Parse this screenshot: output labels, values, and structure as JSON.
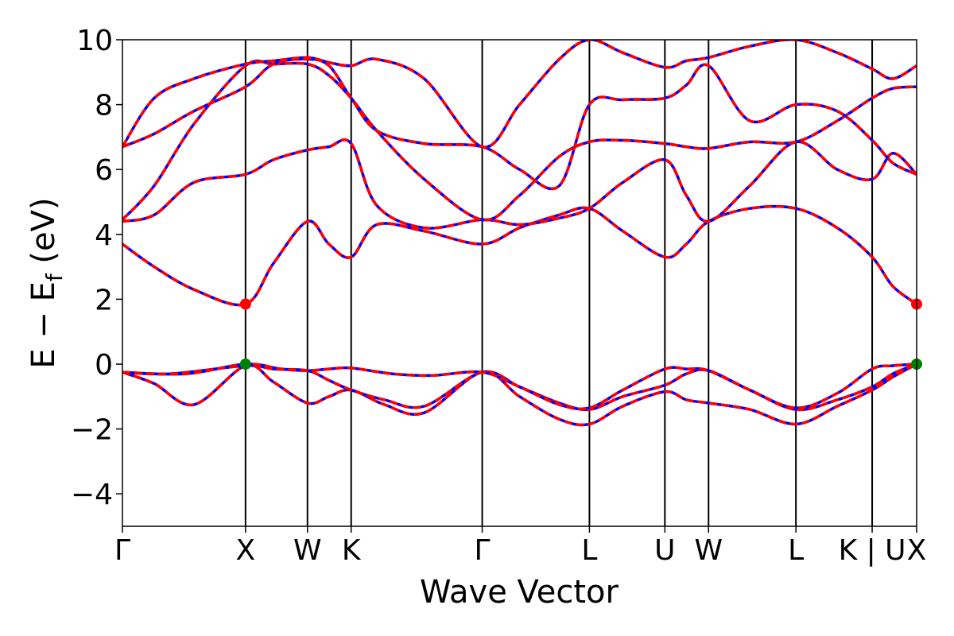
{
  "chart_data": {
    "type": "line",
    "xlabel": "Wave Vector",
    "ylabel": "E − E",
    "ylabel_sub": "f",
    "ylabel_unit": " (eV)",
    "ylim": [
      -5,
      10
    ],
    "xlim": [
      0,
      1
    ],
    "yticks": [
      -4,
      -2,
      0,
      2,
      4,
      6,
      8,
      10
    ],
    "ytick_labels": [
      "−4",
      "−2",
      "0",
      "2",
      "4",
      "6",
      "8",
      "10"
    ],
    "kpoints": [
      {
        "label": "Γ",
        "x": 0.0
      },
      {
        "label": "X",
        "x": 0.155
      },
      {
        "label": "W",
        "x": 0.233
      },
      {
        "label": "K",
        "x": 0.288
      },
      {
        "label": "Γ",
        "x": 0.453
      },
      {
        "label": "L",
        "x": 0.588
      },
      {
        "label": "U",
        "x": 0.683
      },
      {
        "label": "W",
        "x": 0.738
      },
      {
        "label": "L",
        "x": 0.848
      },
      {
        "label": "K | U",
        "x": 0.944
      },
      {
        "label": "X",
        "x": 1.0
      }
    ],
    "colors": {
      "bands": "#0000ff",
      "bands_overlay": "#ff0000",
      "vbm_marker": "#008000",
      "cbm_marker": "#ff0000",
      "kline": "#000000"
    },
    "series": [
      {
        "x": [
          0,
          0.04,
          0.09,
          0.155,
          0.19,
          0.233,
          0.26,
          0.288,
          0.33,
          0.38,
          0.453,
          0.5,
          0.55,
          0.588,
          0.63,
          0.683,
          0.71,
          0.738,
          0.79,
          0.848,
          0.9,
          0.944,
          0.97,
          1.0
        ],
        "y": [
          -0.25,
          -0.6,
          -1.25,
          -0.05,
          -0.55,
          -1.2,
          -1.0,
          -0.8,
          -1.25,
          -1.5,
          -0.25,
          -1.0,
          -1.7,
          -1.85,
          -1.3,
          -0.85,
          -1.1,
          -1.2,
          -1.4,
          -1.85,
          -1.3,
          -0.8,
          -0.4,
          0.0
        ]
      },
      {
        "x": [
          0,
          0.06,
          0.155,
          0.19,
          0.233,
          0.26,
          0.288,
          0.33,
          0.38,
          0.453,
          0.5,
          0.55,
          0.588,
          0.63,
          0.683,
          0.71,
          0.738,
          0.79,
          0.848,
          0.9,
          0.944,
          0.97,
          1.0
        ],
        "y": [
          -0.25,
          -0.3,
          -0.05,
          -0.15,
          -0.2,
          -0.5,
          -0.8,
          -1.1,
          -1.3,
          -0.25,
          -0.7,
          -1.2,
          -1.4,
          -1.0,
          -0.65,
          -0.3,
          -0.2,
          -0.8,
          -1.4,
          -1.1,
          -0.7,
          -0.3,
          0.0
        ]
      },
      {
        "x": [
          0,
          0.08,
          0.155,
          0.2,
          0.233,
          0.26,
          0.288,
          0.34,
          0.39,
          0.453,
          0.5,
          0.55,
          0.588,
          0.63,
          0.683,
          0.71,
          0.738,
          0.79,
          0.848,
          0.9,
          0.944,
          0.97,
          1.0
        ],
        "y": [
          -0.25,
          -0.3,
          0.0,
          -0.15,
          -0.2,
          -0.15,
          -0.12,
          -0.3,
          -0.35,
          -0.25,
          -0.7,
          -1.25,
          -1.35,
          -0.8,
          -0.15,
          -0.15,
          -0.2,
          -0.8,
          -1.35,
          -0.9,
          -0.15,
          -0.05,
          0.0
        ]
      },
      {
        "x": [
          0,
          0.04,
          0.09,
          0.155,
          0.19,
          0.233,
          0.26,
          0.288,
          0.32,
          0.38,
          0.453,
          0.5,
          0.55,
          0.588,
          0.63,
          0.683,
          0.71,
          0.738,
          0.79,
          0.848,
          0.9,
          0.944,
          0.97,
          1.0
        ],
        "y": [
          3.7,
          3.0,
          2.3,
          1.85,
          3.1,
          4.4,
          3.7,
          3.3,
          4.3,
          4.1,
          3.7,
          4.2,
          4.6,
          4.8,
          4.1,
          3.3,
          3.7,
          4.4,
          4.8,
          4.8,
          4.2,
          3.3,
          2.4,
          1.85
        ]
      },
      {
        "x": [
          0,
          0.04,
          0.09,
          0.155,
          0.19,
          0.233,
          0.26,
          0.288,
          0.32,
          0.38,
          0.453,
          0.5,
          0.55,
          0.588,
          0.63,
          0.683,
          0.71,
          0.738,
          0.79,
          0.848,
          0.9,
          0.944,
          0.97,
          1.0
        ],
        "y": [
          4.4,
          4.6,
          5.6,
          5.85,
          6.3,
          6.6,
          6.7,
          6.8,
          4.9,
          4.2,
          4.45,
          4.3,
          4.5,
          4.8,
          5.6,
          6.3,
          5.2,
          4.4,
          5.5,
          6.85,
          6.0,
          5.7,
          6.5,
          5.85
        ]
      },
      {
        "x": [
          0,
          0.04,
          0.09,
          0.155,
          0.19,
          0.233,
          0.26,
          0.288,
          0.32,
          0.38,
          0.453,
          0.5,
          0.55,
          0.588,
          0.63,
          0.683,
          0.71,
          0.738,
          0.79,
          0.848,
          0.9,
          0.944,
          0.97,
          1.0
        ],
        "y": [
          4.45,
          5.5,
          7.4,
          9.2,
          9.25,
          9.25,
          8.9,
          8.2,
          7.2,
          5.7,
          4.45,
          5.2,
          6.4,
          6.85,
          6.9,
          6.8,
          6.7,
          6.65,
          6.85,
          6.85,
          7.5,
          8.2,
          8.5,
          8.55
        ]
      },
      {
        "x": [
          0,
          0.04,
          0.09,
          0.155,
          0.19,
          0.233,
          0.26,
          0.288,
          0.32,
          0.38,
          0.453,
          0.5,
          0.55,
          0.588,
          0.63,
          0.683,
          0.71,
          0.738,
          0.79,
          0.848,
          0.9,
          0.944,
          0.97,
          1.0
        ],
        "y": [
          6.7,
          7.1,
          7.8,
          8.55,
          9.25,
          9.4,
          9.2,
          8.2,
          7.2,
          6.8,
          6.7,
          6.0,
          5.5,
          8.0,
          8.15,
          8.2,
          8.6,
          9.2,
          7.5,
          8.0,
          7.8,
          6.9,
          6.2,
          5.85
        ]
      },
      {
        "x": [
          0,
          0.04,
          0.09,
          0.155,
          0.19,
          0.233,
          0.26,
          0.288,
          0.32,
          0.38,
          0.453,
          0.5,
          0.55,
          0.588,
          0.63,
          0.683,
          0.71,
          0.738,
          0.79,
          0.848,
          0.9,
          0.944,
          0.97,
          1.0
        ],
        "y": [
          6.7,
          8.2,
          8.8,
          9.25,
          9.35,
          9.45,
          9.3,
          9.2,
          9.4,
          8.8,
          6.7,
          8.0,
          9.4,
          10.0,
          9.6,
          9.15,
          9.35,
          9.45,
          9.8,
          10.0,
          9.6,
          9.1,
          8.8,
          9.2
        ]
      }
    ],
    "markers": [
      {
        "x": 0.155,
        "y": 1.85,
        "color": "cbm"
      },
      {
        "x": 1.0,
        "y": 1.85,
        "color": "cbm"
      },
      {
        "x": 0.155,
        "y": 0.0,
        "color": "vbm"
      },
      {
        "x": 1.0,
        "y": 0.0,
        "color": "vbm"
      }
    ]
  }
}
